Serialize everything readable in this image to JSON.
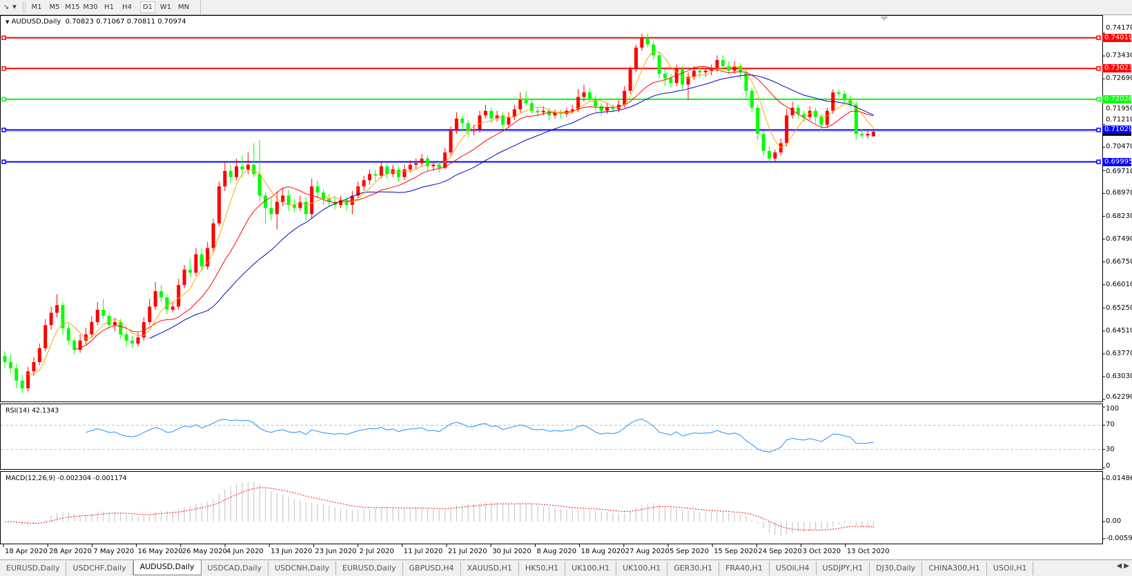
{
  "toolbar": {
    "timeframes": [
      "M1",
      "M5",
      "M15",
      "M30",
      "H1",
      "H4",
      "D1",
      "W1",
      "MN"
    ],
    "active_timeframe": "D1"
  },
  "chart_info": {
    "symbol": "AUDUSD,Daily",
    "ohlc_text": "0.70823 0.71067 0.70811 0.70974"
  },
  "colors": {
    "bull_candle": "#ff0000",
    "bear_candle": "#00ff00",
    "ma_fast": "#ffa500",
    "ma_mid": "#ff0000",
    "ma_slow": "#0000c8",
    "rsi_line": "#1e90ff",
    "macd_hist": "#c0c0c0",
    "macd_signal": "#ff0000"
  },
  "price_axis": [
    "0.74170",
    "0.73430",
    "0.72690",
    "0.71950",
    "0.71210",
    "0.70470",
    "0.69710",
    "0.68970",
    "0.68230",
    "0.67490",
    "0.66750",
    "0.66010",
    "0.65250",
    "0.64510",
    "0.63770",
    "0.63030",
    "0.62290"
  ],
  "hlines": [
    {
      "price": 0.74019,
      "label": "0.74019",
      "color": "#ff0000"
    },
    {
      "price": 0.73023,
      "label": "0.73023",
      "color": "#ff0000"
    },
    {
      "price": 0.72026,
      "label": "0.72026",
      "color": "#00ff00"
    },
    {
      "price": 0.71029,
      "label": "0.71029",
      "color": "#0000ff"
    },
    {
      "price": 0.69995,
      "label": "0.69995",
      "color": "#0000ff"
    }
  ],
  "rsi": {
    "label": "RSI(14) 42.1343",
    "axis": [
      "100",
      "70",
      "30",
      "0"
    ]
  },
  "macd": {
    "label": "MACD(12,26,9) -0.002304 -0.001174",
    "axis": [
      "0.014861",
      "0.00",
      "-0.005938"
    ]
  },
  "date_axis": [
    "18 Apr 2020",
    "28 Apr 2020",
    "7 May 2020",
    "16 May 2020",
    "26 May 2020",
    "4 Jun 2020",
    "13 Jun 2020",
    "23 Jun 2020",
    "2 Jul 2020",
    "11 Jul 2020",
    "21 Jul 2020",
    "30 Jul 2020",
    "8 Aug 2020",
    "18 Aug 2020",
    "27 Aug 2020",
    "5 Sep 2020",
    "15 Sep 2020",
    "24 Sep 2020",
    "3 Oct 2020",
    "13 Oct 2020"
  ],
  "tabs": [
    "EURUSD,Daily",
    "USDCHF,Daily",
    "AUDUSD,Daily",
    "USDCAD,Daily",
    "USDCNH,Daily",
    "EURUSD,Daily",
    "GBPUSD,H4",
    "XAUUSD,H1",
    "HK50,H1",
    "UK100,H1",
    "UK100,H1",
    "GER30,H1",
    "FRA40,H1",
    "USOil,H4",
    "USDJPY,H1",
    "DJ30,Daily",
    "CHINA300,H1",
    "USOil,H1"
  ],
  "active_tab": "AUDUSD,Daily",
  "chart_data": {
    "type": "candlestick",
    "symbol": "AUDUSD",
    "timeframe": "Daily",
    "ylim": [
      0.6229,
      0.7417
    ],
    "candles_ohlc": [
      [
        0.637,
        0.6385,
        0.633,
        0.635
      ],
      [
        0.635,
        0.6375,
        0.6315,
        0.633
      ],
      [
        0.633,
        0.6345,
        0.6265,
        0.629
      ],
      [
        0.629,
        0.631,
        0.625,
        0.6265
      ],
      [
        0.6265,
        0.6335,
        0.6255,
        0.632
      ],
      [
        0.632,
        0.6365,
        0.6305,
        0.635
      ],
      [
        0.635,
        0.641,
        0.634,
        0.6395
      ],
      [
        0.6395,
        0.649,
        0.6385,
        0.647
      ],
      [
        0.647,
        0.653,
        0.6455,
        0.651
      ],
      [
        0.651,
        0.657,
        0.6495,
        0.6535
      ],
      [
        0.6535,
        0.6545,
        0.644,
        0.646
      ],
      [
        0.646,
        0.6475,
        0.6405,
        0.642
      ],
      [
        0.642,
        0.643,
        0.6375,
        0.639
      ],
      [
        0.639,
        0.644,
        0.638,
        0.642
      ],
      [
        0.642,
        0.646,
        0.6405,
        0.644
      ],
      [
        0.644,
        0.65,
        0.643,
        0.648
      ],
      [
        0.648,
        0.6545,
        0.647,
        0.652
      ],
      [
        0.652,
        0.6555,
        0.649,
        0.65
      ],
      [
        0.65,
        0.651,
        0.6455,
        0.647
      ],
      [
        0.647,
        0.6495,
        0.645,
        0.648
      ],
      [
        0.648,
        0.649,
        0.6425,
        0.644
      ],
      [
        0.644,
        0.645,
        0.64,
        0.642
      ],
      [
        0.642,
        0.6435,
        0.6395,
        0.641
      ],
      [
        0.641,
        0.6445,
        0.64,
        0.643
      ],
      [
        0.643,
        0.6495,
        0.642,
        0.648
      ],
      [
        0.648,
        0.6555,
        0.647,
        0.653
      ],
      [
        0.653,
        0.661,
        0.652,
        0.658
      ],
      [
        0.658,
        0.66,
        0.6545,
        0.656
      ],
      [
        0.656,
        0.657,
        0.6505,
        0.652
      ],
      [
        0.652,
        0.6545,
        0.651,
        0.653
      ],
      [
        0.653,
        0.662,
        0.652,
        0.66
      ],
      [
        0.66,
        0.6665,
        0.659,
        0.665
      ],
      [
        0.665,
        0.6685,
        0.6625,
        0.664
      ],
      [
        0.664,
        0.672,
        0.663,
        0.67
      ],
      [
        0.67,
        0.672,
        0.6645,
        0.666
      ],
      [
        0.666,
        0.674,
        0.665,
        0.672
      ],
      [
        0.672,
        0.6815,
        0.6705,
        0.68
      ],
      [
        0.68,
        0.6935,
        0.679,
        0.692
      ],
      [
        0.692,
        0.7,
        0.6905,
        0.697
      ],
      [
        0.697,
        0.699,
        0.693,
        0.695
      ],
      [
        0.695,
        0.701,
        0.694,
        0.6985
      ],
      [
        0.6985,
        0.702,
        0.695,
        0.6975
      ],
      [
        0.6975,
        0.703,
        0.696,
        0.699
      ],
      [
        0.699,
        0.706,
        0.695,
        0.696
      ],
      [
        0.696,
        0.707,
        0.687,
        0.689
      ],
      [
        0.689,
        0.69,
        0.68,
        0.685
      ],
      [
        0.685,
        0.688,
        0.681,
        0.683
      ],
      [
        0.683,
        0.69,
        0.678,
        0.687
      ],
      [
        0.687,
        0.6915,
        0.6855,
        0.689
      ],
      [
        0.689,
        0.691,
        0.684,
        0.686
      ],
      [
        0.686,
        0.688,
        0.6835,
        0.685
      ],
      [
        0.685,
        0.689,
        0.684,
        0.687
      ],
      [
        0.687,
        0.6885,
        0.681,
        0.683
      ],
      [
        0.683,
        0.6945,
        0.6815,
        0.692
      ],
      [
        0.692,
        0.694,
        0.688,
        0.69
      ],
      [
        0.69,
        0.691,
        0.686,
        0.688
      ],
      [
        0.688,
        0.6895,
        0.6855,
        0.687
      ],
      [
        0.687,
        0.6885,
        0.6845,
        0.686
      ],
      [
        0.686,
        0.689,
        0.685,
        0.6875
      ],
      [
        0.6875,
        0.6885,
        0.684,
        0.686
      ],
      [
        0.686,
        0.6905,
        0.683,
        0.689
      ],
      [
        0.689,
        0.6935,
        0.688,
        0.692
      ],
      [
        0.692,
        0.6955,
        0.6905,
        0.694
      ],
      [
        0.694,
        0.6975,
        0.6925,
        0.696
      ],
      [
        0.696,
        0.6975,
        0.6935,
        0.6955
      ],
      [
        0.6955,
        0.7,
        0.6945,
        0.6985
      ],
      [
        0.6985,
        0.6995,
        0.6945,
        0.696
      ],
      [
        0.696,
        0.699,
        0.695,
        0.6975
      ],
      [
        0.6975,
        0.6985,
        0.6935,
        0.695
      ],
      [
        0.695,
        0.699,
        0.694,
        0.6975
      ],
      [
        0.6975,
        0.7005,
        0.6965,
        0.699
      ],
      [
        0.699,
        0.701,
        0.6975,
        0.6995
      ],
      [
        0.6995,
        0.7025,
        0.6985,
        0.701
      ],
      [
        0.701,
        0.702,
        0.697,
        0.6985
      ],
      [
        0.6985,
        0.7,
        0.697,
        0.699
      ],
      [
        0.699,
        0.7,
        0.6965,
        0.698
      ],
      [
        0.698,
        0.7045,
        0.6975,
        0.703
      ],
      [
        0.703,
        0.7115,
        0.702,
        0.71
      ],
      [
        0.71,
        0.716,
        0.709,
        0.714
      ],
      [
        0.714,
        0.715,
        0.71,
        0.7125
      ],
      [
        0.7125,
        0.7135,
        0.708,
        0.71
      ],
      [
        0.71,
        0.712,
        0.7085,
        0.7105
      ],
      [
        0.7105,
        0.7165,
        0.7095,
        0.715
      ],
      [
        0.715,
        0.7185,
        0.714,
        0.7165
      ],
      [
        0.7165,
        0.7175,
        0.7125,
        0.714
      ],
      [
        0.714,
        0.7165,
        0.713,
        0.715
      ],
      [
        0.715,
        0.716,
        0.7105,
        0.712
      ],
      [
        0.712,
        0.716,
        0.711,
        0.7145
      ],
      [
        0.7145,
        0.7185,
        0.7135,
        0.717
      ],
      [
        0.717,
        0.7225,
        0.716,
        0.72
      ],
      [
        0.72,
        0.723,
        0.718,
        0.719
      ],
      [
        0.719,
        0.72,
        0.7155,
        0.7165
      ],
      [
        0.7165,
        0.7175,
        0.7145,
        0.716
      ],
      [
        0.716,
        0.718,
        0.715,
        0.7165
      ],
      [
        0.7165,
        0.7175,
        0.7135,
        0.715
      ],
      [
        0.715,
        0.717,
        0.714,
        0.716
      ],
      [
        0.716,
        0.717,
        0.714,
        0.7155
      ],
      [
        0.7155,
        0.7175,
        0.7145,
        0.7165
      ],
      [
        0.7165,
        0.7185,
        0.7155,
        0.717
      ],
      [
        0.717,
        0.7235,
        0.716,
        0.721
      ],
      [
        0.721,
        0.725,
        0.7195,
        0.7225
      ],
      [
        0.7225,
        0.724,
        0.7195,
        0.7205
      ],
      [
        0.7205,
        0.7215,
        0.7165,
        0.718
      ],
      [
        0.718,
        0.719,
        0.715,
        0.7165
      ],
      [
        0.7165,
        0.719,
        0.7155,
        0.7175
      ],
      [
        0.7175,
        0.7185,
        0.716,
        0.717
      ],
      [
        0.717,
        0.72,
        0.716,
        0.7185
      ],
      [
        0.7185,
        0.7245,
        0.7175,
        0.723
      ],
      [
        0.723,
        0.731,
        0.722,
        0.73
      ],
      [
        0.73,
        0.738,
        0.729,
        0.737
      ],
      [
        0.737,
        0.7415,
        0.736,
        0.74
      ],
      [
        0.74,
        0.7415,
        0.737,
        0.738
      ],
      [
        0.738,
        0.739,
        0.733,
        0.7345
      ],
      [
        0.7345,
        0.7355,
        0.727,
        0.7285
      ],
      [
        0.7285,
        0.73,
        0.7245,
        0.727
      ],
      [
        0.727,
        0.7285,
        0.724,
        0.7255
      ],
      [
        0.7255,
        0.7315,
        0.7245,
        0.73
      ],
      [
        0.73,
        0.731,
        0.7235,
        0.725
      ],
      [
        0.725,
        0.729,
        0.72,
        0.7275
      ],
      [
        0.7275,
        0.731,
        0.7265,
        0.7295
      ],
      [
        0.7295,
        0.7305,
        0.727,
        0.729
      ],
      [
        0.729,
        0.7305,
        0.7275,
        0.7295
      ],
      [
        0.7295,
        0.7315,
        0.728,
        0.73
      ],
      [
        0.73,
        0.7345,
        0.729,
        0.733
      ],
      [
        0.733,
        0.7345,
        0.7295,
        0.731
      ],
      [
        0.731,
        0.7325,
        0.7285,
        0.7295
      ],
      [
        0.7295,
        0.7325,
        0.7285,
        0.731
      ],
      [
        0.731,
        0.732,
        0.727,
        0.729
      ],
      [
        0.729,
        0.73,
        0.7205,
        0.723
      ],
      [
        0.723,
        0.724,
        0.716,
        0.7175
      ],
      [
        0.7175,
        0.7185,
        0.707,
        0.709
      ],
      [
        0.709,
        0.71,
        0.702,
        0.7035
      ],
      [
        0.7035,
        0.705,
        0.6995,
        0.701
      ],
      [
        0.701,
        0.704,
        0.7,
        0.703
      ],
      [
        0.703,
        0.7075,
        0.702,
        0.706
      ],
      [
        0.706,
        0.717,
        0.705,
        0.715
      ],
      [
        0.715,
        0.7195,
        0.714,
        0.7175
      ],
      [
        0.7175,
        0.7185,
        0.714,
        0.7155
      ],
      [
        0.7155,
        0.7165,
        0.713,
        0.7145
      ],
      [
        0.7145,
        0.718,
        0.7135,
        0.7165
      ],
      [
        0.7165,
        0.7175,
        0.7125,
        0.7145
      ],
      [
        0.7145,
        0.7155,
        0.71,
        0.712
      ],
      [
        0.712,
        0.7175,
        0.711,
        0.7165
      ],
      [
        0.7165,
        0.7235,
        0.7155,
        0.7225
      ],
      [
        0.7225,
        0.7235,
        0.721,
        0.722
      ],
      [
        0.722,
        0.723,
        0.719,
        0.72
      ],
      [
        0.72,
        0.7215,
        0.7175,
        0.7185
      ],
      [
        0.7185,
        0.7195,
        0.707,
        0.709
      ],
      [
        0.709,
        0.7105,
        0.7075,
        0.7085
      ],
      [
        0.7085,
        0.71,
        0.7075,
        0.709
      ],
      [
        0.70823,
        0.71067,
        0.70811,
        0.70974
      ]
    ]
  }
}
